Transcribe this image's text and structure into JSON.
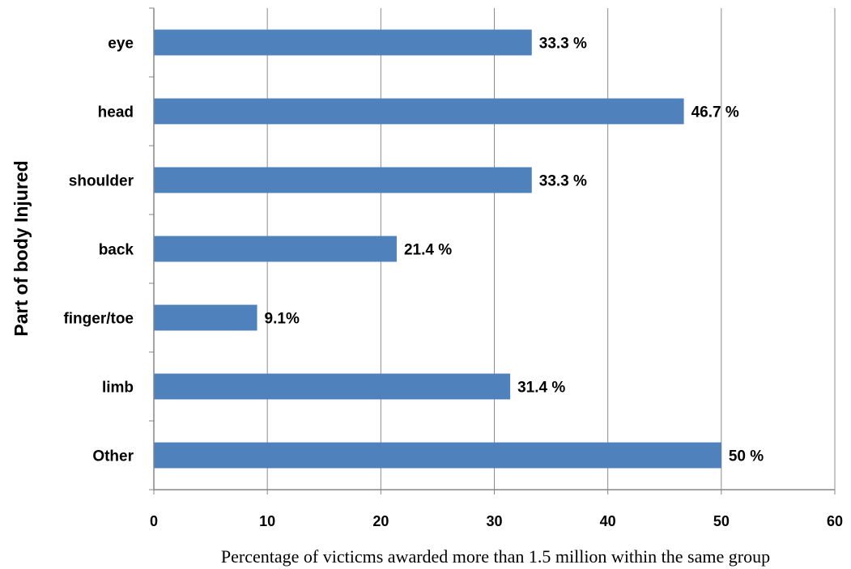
{
  "chart_data": {
    "type": "bar",
    "orientation": "horizontal",
    "categories": [
      "eye",
      "head",
      "shoulder",
      "back",
      "finger/toe",
      "limb",
      "Other"
    ],
    "values": [
      33.3,
      46.7,
      33.3,
      21.4,
      9.1,
      31.4,
      50
    ],
    "data_labels": [
      "33.3 %",
      "46.7 %",
      "33.3 %",
      "21.4 %",
      "9.1%",
      "31.4 %",
      "50 %"
    ],
    "xlabel": "Percentage of victicms awarded more than  1.5 million within the same group",
    "ylabel": "Part of body Injured",
    "xlim": [
      0,
      60
    ],
    "xticks": [
      0,
      10,
      20,
      30,
      40,
      50,
      60
    ],
    "grid": "vertical",
    "bar_color": "#4f81bd",
    "grid_color": "#8c8c8c",
    "axis_color": "#868686"
  }
}
